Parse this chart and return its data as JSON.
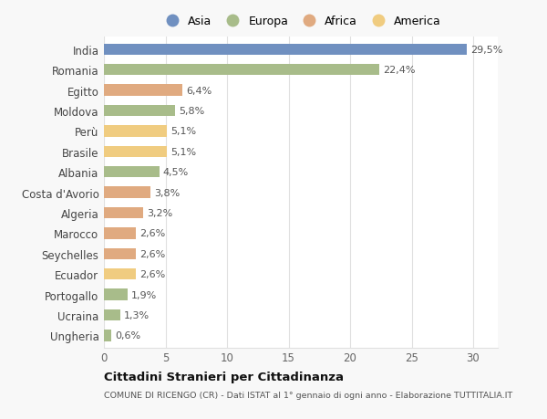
{
  "countries": [
    "India",
    "Romania",
    "Egitto",
    "Moldova",
    "Perù",
    "Brasile",
    "Albania",
    "Costa d'Avorio",
    "Algeria",
    "Marocco",
    "Seychelles",
    "Ecuador",
    "Portogallo",
    "Ucraina",
    "Ungheria"
  ],
  "values": [
    29.5,
    22.4,
    6.4,
    5.8,
    5.1,
    5.1,
    4.5,
    3.8,
    3.2,
    2.6,
    2.6,
    2.6,
    1.9,
    1.3,
    0.6
  ],
  "labels": [
    "29,5%",
    "22,4%",
    "6,4%",
    "5,8%",
    "5,1%",
    "5,1%",
    "4,5%",
    "3,8%",
    "3,2%",
    "2,6%",
    "2,6%",
    "2,6%",
    "1,9%",
    "1,3%",
    "0,6%"
  ],
  "continents": [
    "Asia",
    "Europa",
    "Africa",
    "Europa",
    "America",
    "America",
    "Europa",
    "Africa",
    "Africa",
    "Africa",
    "Africa",
    "America",
    "Europa",
    "Europa",
    "Europa"
  ],
  "continent_colors": {
    "Asia": "#7090c0",
    "Europa": "#a8bc8a",
    "Africa": "#e0aa80",
    "America": "#f0cc80"
  },
  "legend_order": [
    "Asia",
    "Europa",
    "Africa",
    "America"
  ],
  "title": "Cittadini Stranieri per Cittadinanza",
  "subtitle": "COMUNE DI RICENGO (CR) - Dati ISTAT al 1° gennaio di ogni anno - Elaborazione TUTTITALIA.IT",
  "xlim": [
    0,
    32
  ],
  "xticks": [
    0,
    5,
    10,
    15,
    20,
    25,
    30
  ],
  "background_color": "#f8f8f8",
  "bar_background": "#ffffff",
  "grid_color": "#e0e0e0"
}
